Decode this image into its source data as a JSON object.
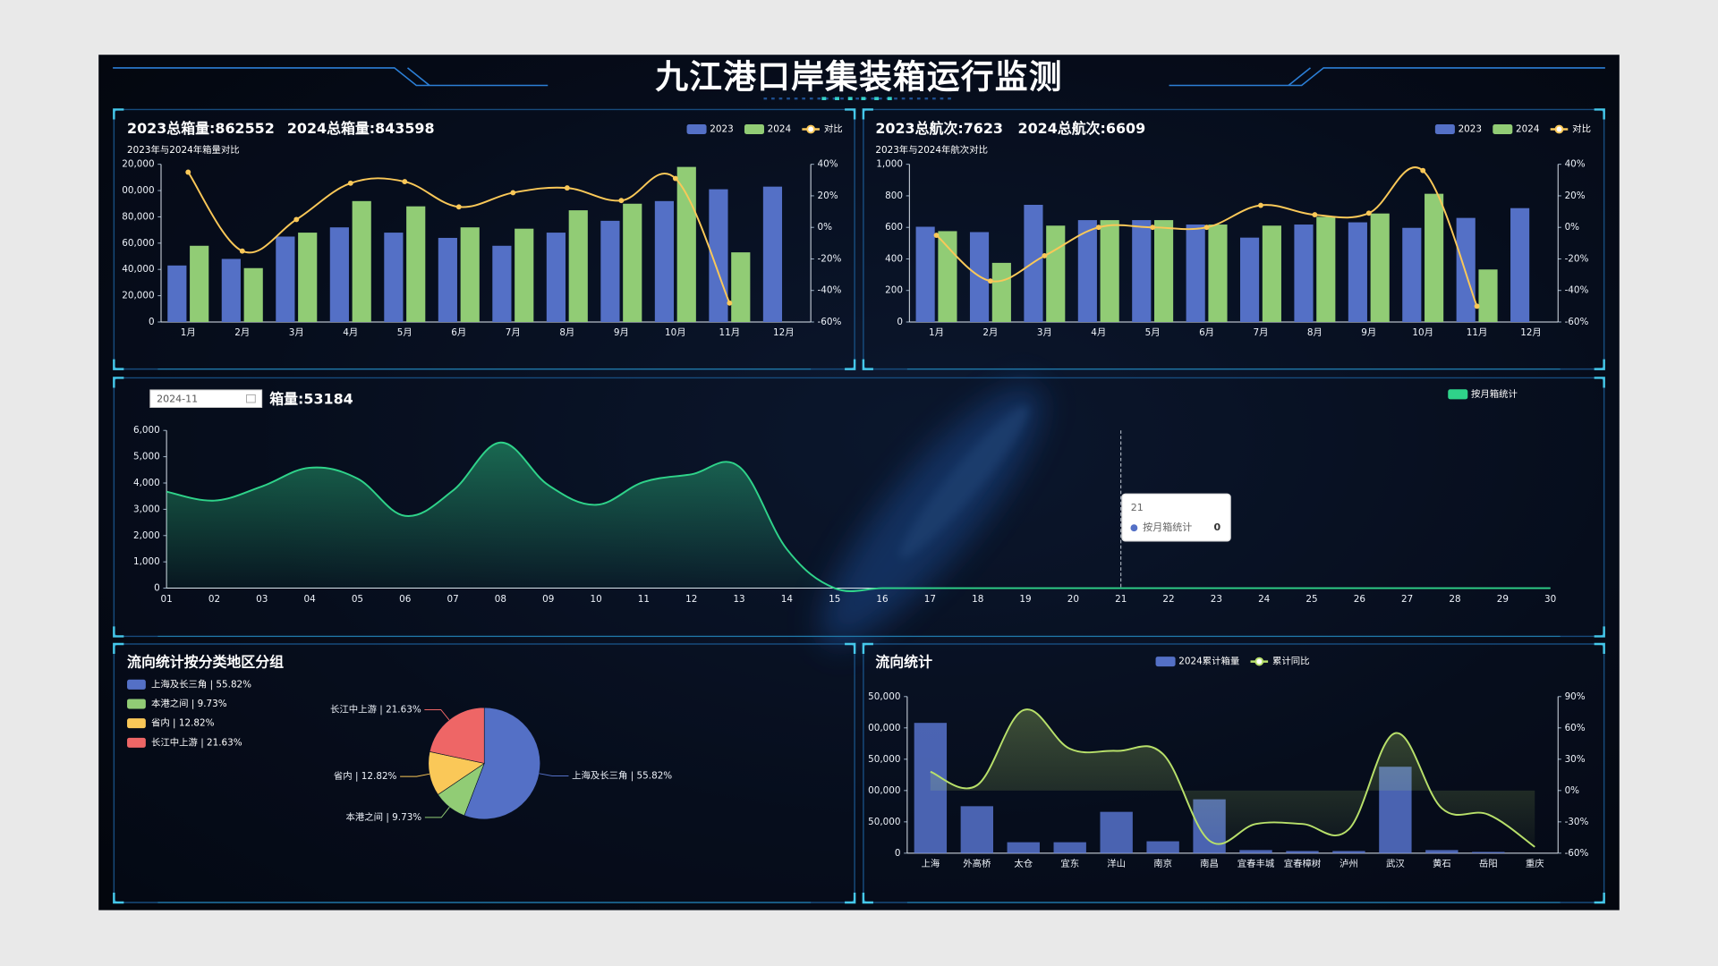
{
  "header": {
    "title": "九江港口岸集装箱运行监测"
  },
  "chart_data": [
    {
      "type": "bar",
      "titles": [
        "2023总箱量:862552",
        "2024总箱量:843598"
      ],
      "subtitle": "2023年与2024年箱量对比",
      "categories": [
        "1月",
        "2月",
        "3月",
        "4月",
        "5月",
        "6月",
        "7月",
        "8月",
        "9月",
        "10月",
        "11月",
        "12月"
      ],
      "series": [
        {
          "name": "2023",
          "color": "#5470c6",
          "values": [
            43000,
            48000,
            65000,
            72000,
            68000,
            64000,
            58000,
            68000,
            77000,
            92000,
            101000,
            103000
          ]
        },
        {
          "name": "2024",
          "color": "#91cc75",
          "values": [
            58000,
            41000,
            68000,
            92000,
            88000,
            72000,
            71000,
            85000,
            90000,
            118000,
            53000,
            null
          ]
        },
        {
          "name": "对比",
          "type": "line",
          "axis": "y2",
          "markers": true,
          "color": "#fac858",
          "values": [
            35,
            -15,
            5,
            28,
            29,
            13,
            22,
            25,
            17,
            31,
            -48,
            null
          ]
        }
      ],
      "ylim": [
        0,
        120000
      ],
      "yticks": [
        0,
        {
          "value": 20000,
          "label": "20,000"
        },
        {
          "value": 40000,
          "label": "40,000"
        },
        {
          "value": 60000,
          "label": "60,000"
        },
        {
          "value": 80000,
          "label": "80,000"
        },
        {
          "value": 100000,
          "label": "00,000"
        },
        {
          "value": 120000,
          "label": "20,000"
        }
      ],
      "y2lim": [
        -60,
        40
      ],
      "y2ticks": [
        {
          "value": -60,
          "label": "-60%"
        },
        {
          "value": -40,
          "label": "-40%"
        },
        {
          "value": -20,
          "label": "-20%"
        },
        {
          "value": 0,
          "label": "0%"
        },
        {
          "value": 20,
          "label": "20%"
        },
        {
          "value": 40,
          "label": "40%"
        }
      ],
      "legend": "top-right"
    },
    {
      "type": "bar",
      "titles": [
        "2023总航次:7623",
        "2024总航次:6609"
      ],
      "subtitle": "2023年与2024年航次对比",
      "categories": [
        "1月",
        "2月",
        "3月",
        "4月",
        "5月",
        "6月",
        "7月",
        "8月",
        "9月",
        "10月",
        "11月",
        "12月"
      ],
      "series": [
        {
          "name": "2023",
          "color": "#5470c6",
          "values": [
            604,
            570,
            743,
            646,
            646,
            618,
            535,
            618,
            632,
            597,
            660,
            722
          ]
        },
        {
          "name": "2024",
          "color": "#91cc75",
          "values": [
            576,
            375,
            611,
            646,
            646,
            618,
            611,
            667,
            688,
            813,
            333,
            null
          ]
        },
        {
          "name": "对比",
          "type": "line",
          "axis": "y2",
          "markers": true,
          "color": "#fac858",
          "values": [
            -5,
            -34,
            -18,
            0,
            0,
            0,
            14,
            8,
            9,
            36,
            -50,
            null
          ]
        }
      ],
      "ylim": [
        0,
        1000
      ],
      "yticks": [
        0,
        200,
        400,
        600,
        800,
        {
          "value": 1000,
          "label": "1,000"
        }
      ],
      "y2lim": [
        -60,
        40
      ],
      "y2ticks": [
        {
          "value": -60,
          "label": "-60%"
        },
        {
          "value": -40,
          "label": "-40%"
        },
        {
          "value": -20,
          "label": "-20%"
        },
        {
          "value": 0,
          "label": "0%"
        },
        {
          "value": 20,
          "label": "20%"
        },
        {
          "value": 40,
          "label": "40%"
        }
      ],
      "legend": "top-right"
    },
    {
      "type": "line",
      "date": "2024-11",
      "title": "箱量:53184",
      "categories": [
        "01",
        "02",
        "03",
        "04",
        "05",
        "06",
        "07",
        "08",
        "09",
        "10",
        "11",
        "12",
        "13",
        "14",
        "15",
        "16",
        "17",
        "18",
        "19",
        "20",
        "21",
        "22",
        "23",
        "24",
        "25",
        "26",
        "27",
        "28",
        "29",
        "30"
      ],
      "series": [
        {
          "name": "按月箱统计",
          "color": "#2fd38a",
          "values": [
            3670,
            3330,
            3870,
            4580,
            4170,
            2750,
            3710,
            5540,
            3920,
            3170,
            4040,
            4330,
            4620,
            1480,
            0,
            0,
            0,
            0,
            0,
            0,
            0,
            0,
            0,
            0,
            0,
            0,
            0,
            0,
            0,
            0
          ]
        }
      ],
      "ylim": [
        0,
        6000
      ],
      "yticks": [
        0,
        {
          "value": 1000,
          "label": "1,000"
        },
        {
          "value": 2000,
          "label": "2,000"
        },
        {
          "value": 3000,
          "label": "3,000"
        },
        {
          "value": 4000,
          "label": "4,000"
        },
        {
          "value": 5000,
          "label": "5,000"
        },
        {
          "value": 6000,
          "label": "6,000"
        }
      ],
      "legend": "top-right",
      "tooltip": {
        "category": "21",
        "name": "按月箱统计",
        "value": 0
      }
    },
    {
      "type": "pie",
      "title": "流向统计按分类地区分组",
      "values": [
        55.82,
        9.73,
        12.82,
        21.63
      ],
      "value_labels": [
        "上海及长三角 | 55.82%",
        "本港之间 | 9.73%",
        "省内 | 12.82%",
        "长江中上游 | 21.63%"
      ],
      "colors": [
        "#5470c6",
        "#91cc75",
        "#fac858",
        "#ee6666"
      ],
      "legend": "top-left"
    },
    {
      "type": "bar",
      "title": "流向统计",
      "categories": [
        "上海",
        "外高桥",
        "太仓",
        "宜东",
        "洋山",
        "南京",
        "南昌",
        "宜春丰城",
        "宜春樟树",
        "泸州",
        "武汉",
        "黄石",
        "岳阳",
        "重庆"
      ],
      "series": [
        {
          "name": "2024累计箱量",
          "color": "#5470c6",
          "values": [
            208000,
            75000,
            17500,
            17500,
            66000,
            19000,
            86000,
            5000,
            3500,
            3500,
            138000,
            5000,
            2000,
            null
          ]
        },
        {
          "name": "累计同比",
          "type": "line",
          "axis": "y2",
          "area": true,
          "color": "#b8e06a",
          "values": [
            18,
            5,
            77,
            40,
            38,
            35,
            -48,
            -32,
            -32,
            -37,
            55,
            -17,
            -23,
            -54
          ]
        }
      ],
      "ylim": [
        0,
        250000
      ],
      "yticks": [
        0,
        {
          "value": 50000,
          "label": "50,000"
        },
        {
          "value": 100000,
          "label": "00,000"
        },
        {
          "value": 150000,
          "label": "50,000"
        },
        {
          "value": 200000,
          "label": "00,000"
        },
        {
          "value": 250000,
          "label": "50,000"
        }
      ],
      "y2lim": [
        -60,
        90
      ],
      "y2ticks": [
        {
          "value": -60,
          "label": "-60%"
        },
        {
          "value": -30,
          "label": "-30%"
        },
        {
          "value": 0,
          "label": "0%"
        },
        {
          "value": 30,
          "label": "30%"
        },
        {
          "value": 60,
          "label": "60%"
        },
        {
          "value": 90,
          "label": "90%"
        }
      ],
      "legend": "top-center"
    }
  ]
}
